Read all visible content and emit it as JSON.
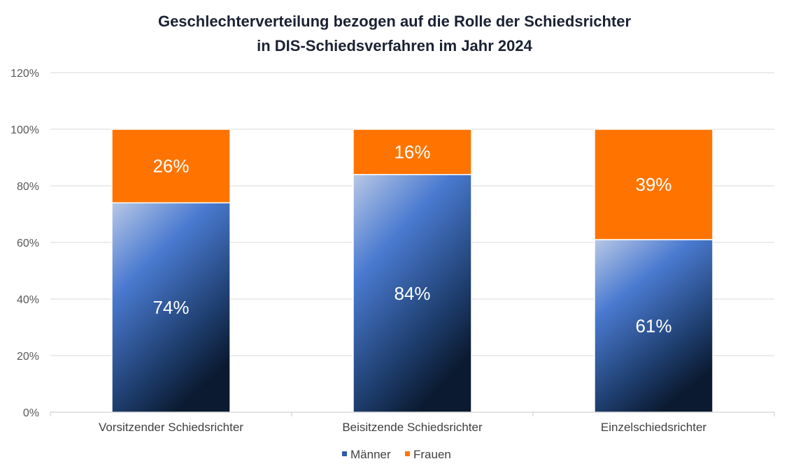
{
  "chart_data": {
    "type": "bar",
    "stacked": true,
    "title": [
      "Geschlechterverteilung bezogen auf die Rolle der Schiedsrichter",
      "in DIS-Schiedsverfahren im Jahr 2024"
    ],
    "categories": [
      "Vorsitzender Schiedsrichter",
      "Beisitzende Schiedsrichter",
      "Einzelschiedsrichter"
    ],
    "series": [
      {
        "name": "Männer",
        "values": [
          74,
          84,
          61
        ],
        "labels": [
          "74%",
          "84%",
          "61%"
        ],
        "color": "#3b6fc9"
      },
      {
        "name": "Frauen",
        "values": [
          26,
          16,
          39
        ],
        "labels": [
          "26%",
          "16%",
          "39%"
        ],
        "color": "#ff7400"
      }
    ],
    "yticks": [
      "0%",
      "20%",
      "40%",
      "60%",
      "80%",
      "100%",
      "120%"
    ],
    "ylim": [
      0,
      120
    ],
    "grid": true,
    "legend_position": "bottom"
  }
}
